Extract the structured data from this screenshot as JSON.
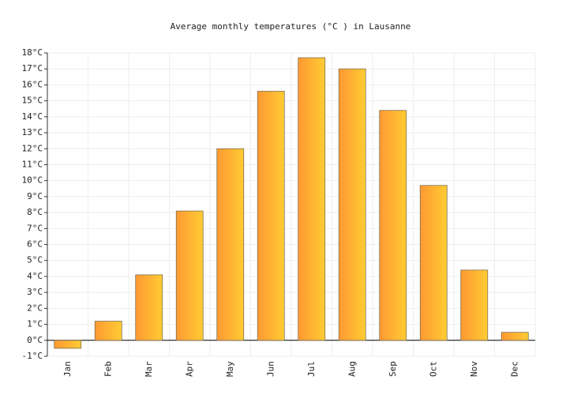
{
  "chart_data": {
    "type": "bar",
    "title": "Average monthly temperatures (°C ) in Lausanne",
    "categories": [
      "Jan",
      "Feb",
      "Mar",
      "Apr",
      "May",
      "Jun",
      "Jul",
      "Aug",
      "Sep",
      "Oct",
      "Nov",
      "Dec"
    ],
    "values": [
      -0.5,
      1.2,
      4.1,
      8.1,
      12.0,
      15.6,
      17.7,
      17.0,
      14.4,
      9.7,
      4.4,
      0.5
    ],
    "color": "#ffb133",
    "ylim": [
      -1,
      18
    ],
    "yticks": [
      {
        "value": -1,
        "label": "-1°C"
      },
      {
        "value": 0,
        "label": "0°C"
      },
      {
        "value": 1,
        "label": "1°C"
      },
      {
        "value": 2,
        "label": "2°C"
      },
      {
        "value": 3,
        "label": "3°C"
      },
      {
        "value": 4,
        "label": "4°C"
      },
      {
        "value": 5,
        "label": "5°C"
      },
      {
        "value": 6,
        "label": "6°C"
      },
      {
        "value": 7,
        "label": "7°C"
      },
      {
        "value": 8,
        "label": "8°C"
      },
      {
        "value": 9,
        "label": "9°C"
      },
      {
        "value": 10,
        "label": "10°C"
      },
      {
        "value": 11,
        "label": "11°C"
      },
      {
        "value": 12,
        "label": "12°C"
      },
      {
        "value": 13,
        "label": "13°C"
      },
      {
        "value": 14,
        "label": "14°C"
      },
      {
        "value": 15,
        "label": "15°C"
      },
      {
        "value": 16,
        "label": "16°C"
      },
      {
        "value": 17,
        "label": "17°C"
      },
      {
        "value": 18,
        "label": "18°C"
      }
    ],
    "grid": true
  }
}
